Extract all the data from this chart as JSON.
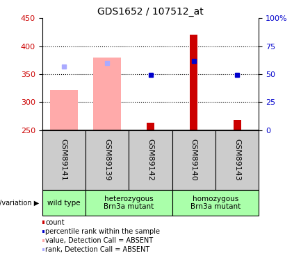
{
  "title": "GDS1652 / 107512_at",
  "samples": [
    "GSM89141",
    "GSM89139",
    "GSM89142",
    "GSM89140",
    "GSM89143"
  ],
  "ylim": [
    250,
    450
  ],
  "ylim_right": [
    0,
    100
  ],
  "yticks_left": [
    250,
    300,
    350,
    400,
    450
  ],
  "yticks_right": [
    0,
    25,
    50,
    75,
    100
  ],
  "bar_base": 250,
  "bars": {
    "count_red": [
      null,
      null,
      263,
      420,
      268
    ],
    "rank_blue": [
      null,
      null,
      348,
      373,
      348
    ],
    "value_pink": [
      321,
      380,
      null,
      null,
      null
    ],
    "rank_light_blue": [
      363,
      370,
      null,
      null,
      null
    ]
  },
  "colors": {
    "count_red": "#cc0000",
    "rank_blue": "#0000cc",
    "value_pink": "#ffaaaa",
    "rank_light_blue": "#aaaaff"
  },
  "legend_items": [
    {
      "color": "#cc0000",
      "label": "count"
    },
    {
      "color": "#0000cc",
      "label": "percentile rank within the sample"
    },
    {
      "color": "#ffaaaa",
      "label": "value, Detection Call = ABSENT"
    },
    {
      "color": "#aaaaff",
      "label": "rank, Detection Call = ABSENT"
    }
  ],
  "left_axis_color": "#cc0000",
  "right_axis_color": "#0000cc",
  "sample_bg_color": "#cccccc",
  "geno_bg_color": "#aaffaa",
  "groups": [
    {
      "start": 0,
      "end": 0,
      "label": "wild type"
    },
    {
      "start": 1,
      "end": 2,
      "label": "heterozygous\nBrn3a mutant"
    },
    {
      "start": 3,
      "end": 4,
      "label": "homozygous\nBrn3a mutant"
    }
  ]
}
